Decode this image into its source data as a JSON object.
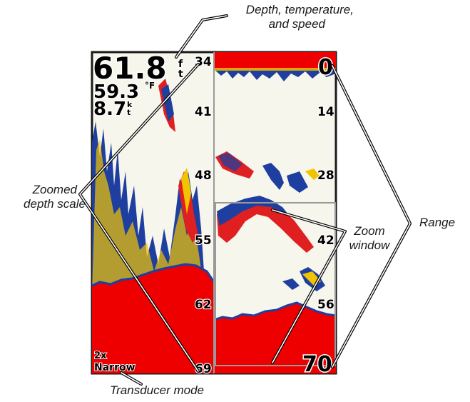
{
  "callouts": {
    "depth_temp_speed_line1": "Depth, temperature,",
    "depth_temp_speed_line2": "and speed",
    "zoomed_scale_line1": "Zoomed",
    "zoomed_scale_line2": "depth scale",
    "zoom_window_line1": "Zoom",
    "zoom_window_line2": "window",
    "range": "Range",
    "transducer_mode": "Transducer mode"
  },
  "readouts": {
    "depth_value": "61.8",
    "depth_unit_top": "f",
    "depth_unit_bottom": "t",
    "temperature_value": "59.3",
    "temperature_unit": "°F",
    "speed_value": "8.7",
    "speed_unit_top": "k",
    "speed_unit_bottom": "t"
  },
  "zoomed_scale": [
    "34",
    "41",
    "48",
    "55",
    "62",
    "69"
  ],
  "range_scale": {
    "top": "0",
    "ticks": [
      "14",
      "28",
      "42",
      "56"
    ],
    "bottom": "70"
  },
  "transducer": {
    "multiplier": "2x",
    "beam": "Narrow"
  },
  "colors": {
    "water": "#f6f6ec",
    "bottom": "#ee0000",
    "fish": "#e02020",
    "echo_blue": "#1f3fa0",
    "echo_yellow": "#f2c400",
    "frame": "#1a1a1a",
    "zoom_window": "#999999"
  }
}
